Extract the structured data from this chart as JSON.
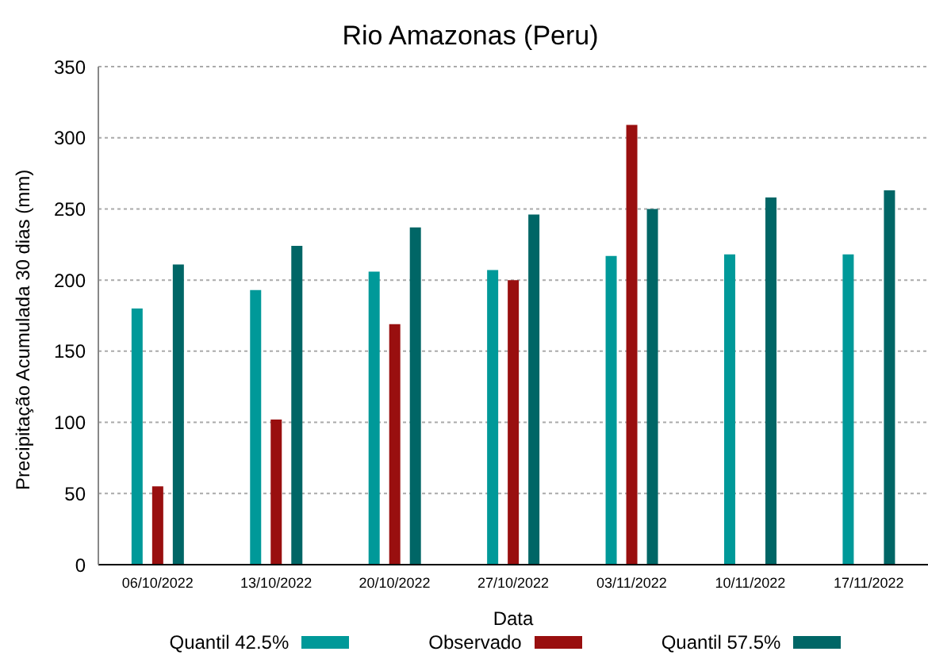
{
  "chart_data": {
    "type": "bar",
    "title": "Rio Amazonas (Peru)",
    "xlabel": "Data",
    "ylabel": "Precipitação Acumulada 30 dias (mm)",
    "categories": [
      "06/10/2022",
      "13/10/2022",
      "20/10/2022",
      "27/10/2022",
      "03/11/2022",
      "10/11/2022",
      "17/11/2022"
    ],
    "series": [
      {
        "name": "Quantil 42.5%",
        "color": "#009999",
        "values": [
          180,
          193,
          206,
          207,
          217,
          218,
          218
        ]
      },
      {
        "name": "Observado",
        "color": "#990f0f",
        "values": [
          55,
          102,
          169,
          200,
          309,
          null,
          null
        ]
      },
      {
        "name": "Quantil 57.5%",
        "color": "#006666",
        "values": [
          211,
          224,
          237,
          246,
          250,
          258,
          263
        ]
      }
    ],
    "ylim": [
      0,
      350
    ],
    "yticks": [
      0,
      50,
      100,
      150,
      200,
      250,
      300,
      350
    ],
    "grid": "y",
    "legend": "bottom"
  }
}
